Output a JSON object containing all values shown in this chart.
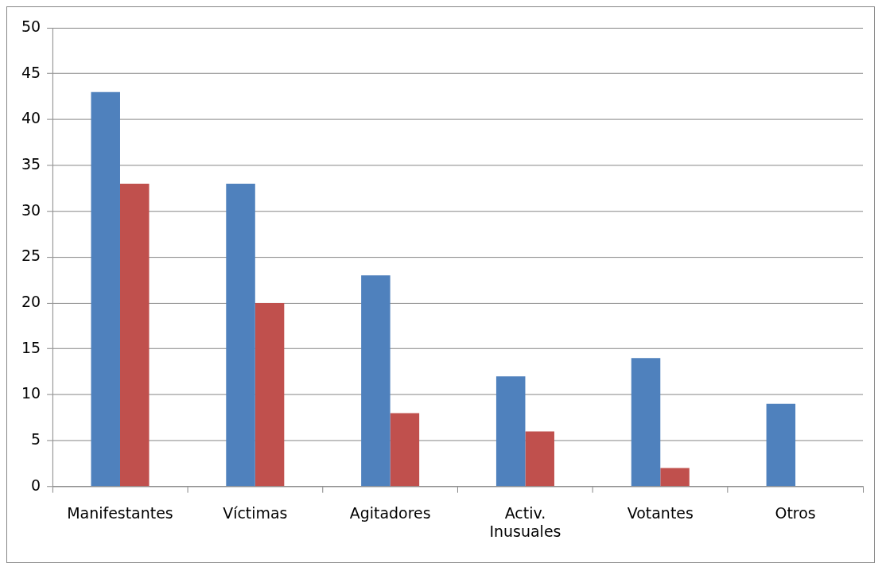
{
  "chart_data": {
    "type": "bar",
    "categories": [
      "Manifestantes",
      "Víctimas",
      "Agitadores",
      "Activ. Inusuales",
      "Votantes",
      "Otros"
    ],
    "series": [
      {
        "color": "#4f81bd",
        "values": [
          43,
          33,
          23,
          12,
          14,
          9
        ]
      },
      {
        "color": "#c0504d",
        "values": [
          33,
          20,
          8,
          6,
          2,
          null
        ]
      }
    ],
    "ylim": [
      0,
      50
    ],
    "yticks": [
      0,
      5,
      10,
      15,
      20,
      25,
      30,
      35,
      40,
      45,
      50
    ],
    "grid": "y",
    "legend": false
  }
}
